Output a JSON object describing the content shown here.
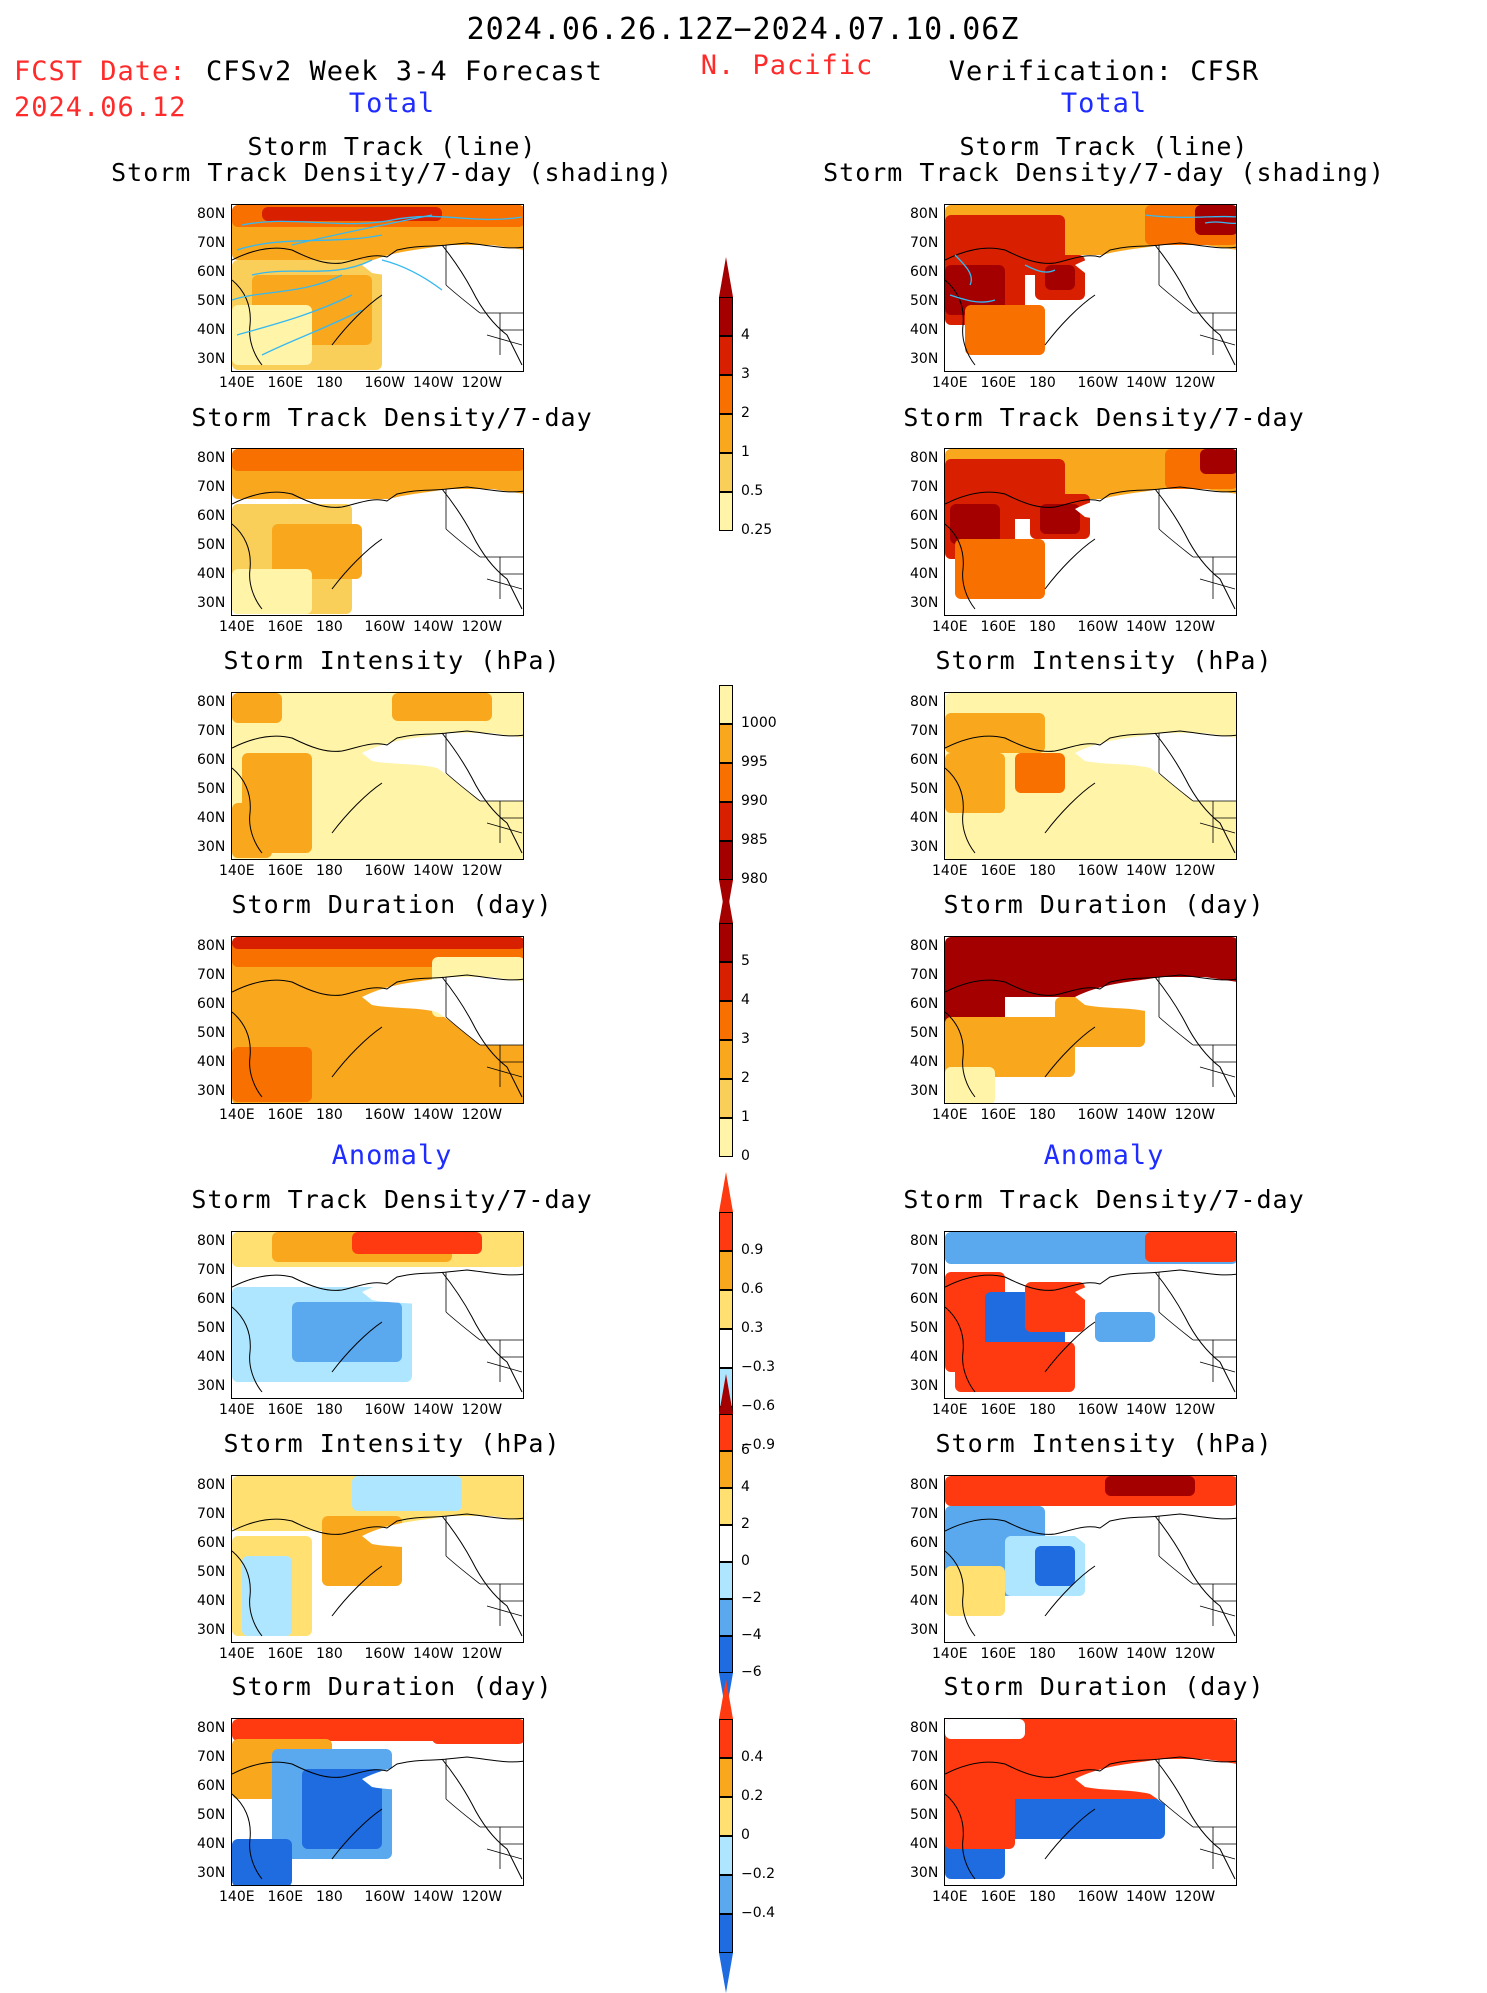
{
  "header": {
    "date_range": "2024.06.26.12Z−2024.07.10.06Z",
    "fcst_label": "FCST Date:",
    "fcst_date": "2024.06.12",
    "left_title": "CFSv2 Week 3-4 Forecast",
    "region": "N. Pacific",
    "right_title": "Verification: CFSR",
    "total_label": "Total",
    "anomaly_label": "Anomaly"
  },
  "panel_titles": {
    "track_line": "Storm Track (line)",
    "track_shading": "Storm Track Density/7-day (shading)",
    "density": "Storm Track Density/7-day",
    "intensity": "Storm Intensity (hPa)",
    "duration": "Storm Duration (day)"
  },
  "axes": {
    "lon_ticks": [
      "140E",
      "160E",
      "180",
      "160W",
      "140W",
      "120W"
    ],
    "lat_ticks": [
      "80N",
      "70N",
      "60N",
      "50N",
      "40N",
      "30N"
    ]
  },
  "colorbars": {
    "density_total": {
      "labels": [
        "4",
        "3",
        "2",
        "1",
        "0.5",
        "0.25"
      ],
      "colors": [
        "#a50000",
        "#d82000",
        "#f87000",
        "#f9a81e",
        "#f9cf5a",
        "#fff4a8"
      ]
    },
    "intensity_total": {
      "labels": [
        "1000",
        "995",
        "990",
        "985",
        "980"
      ],
      "colors": [
        "#fff4a8",
        "#f9a81e",
        "#f87000",
        "#d82000",
        "#a50000"
      ]
    },
    "duration_total": {
      "labels": [
        "5",
        "4",
        "3",
        "2",
        "1",
        "0"
      ],
      "colors": [
        "#a50000",
        "#d82000",
        "#f87000",
        "#f9a81e",
        "#f9cf5a",
        "#fff4a8"
      ]
    },
    "density_anom": {
      "labels": [
        "0.9",
        "0.6",
        "0.3",
        "−0.3",
        "−0.6",
        "−0.9"
      ],
      "colors": [
        "#ff3a10",
        "#f9a81e",
        "#ffe070",
        "#ffffff",
        "#aee6ff",
        "#5aa8ee",
        "#1e6ce0"
      ]
    },
    "intensity_anom": {
      "labels": [
        "6",
        "4",
        "2",
        "0",
        "−2",
        "−4",
        "−6"
      ],
      "colors": [
        "#ff3a10",
        "#f9a81e",
        "#ffe070",
        "#ffffff",
        "#aee6ff",
        "#5aa8ee",
        "#1e6ce0"
      ]
    },
    "duration_anom": {
      "labels": [
        "0.4",
        "0.2",
        "0",
        "−0.2",
        "−0.4"
      ],
      "colors": [
        "#ff3a10",
        "#f9a81e",
        "#ffe070",
        "#aee6ff",
        "#5aa8ee",
        "#1e6ce0"
      ]
    }
  },
  "colors": {
    "title_red": "#ff2a2a",
    "title_blue": "#1f2cff",
    "track_line": "#36b8f0"
  }
}
